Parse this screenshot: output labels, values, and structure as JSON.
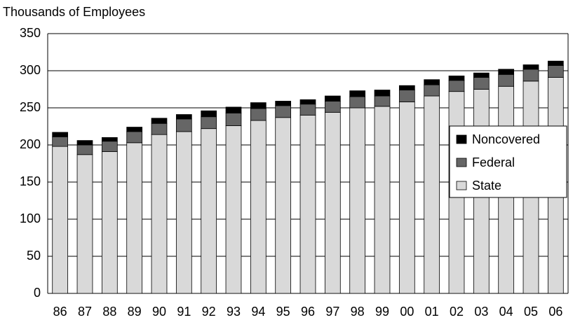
{
  "chart_data": {
    "type": "stacked_bar",
    "y_label": "Thousands of Employees",
    "categories": [
      "86",
      "87",
      "88",
      "89",
      "90",
      "91",
      "92",
      "93",
      "94",
      "95",
      "96",
      "97",
      "98",
      "99",
      "00",
      "01",
      "02",
      "03",
      "04",
      "05",
      "06"
    ],
    "series": [
      {
        "name": "State",
        "color": "#d9d9d9",
        "values": [
          198,
          187,
          191,
          203,
          214,
          218,
          222,
          226,
          233,
          237,
          240,
          244,
          250,
          252,
          258,
          266,
          272,
          275,
          279,
          286,
          291
        ]
      },
      {
        "name": "Federal",
        "color": "#666666",
        "values": [
          13,
          13,
          14,
          15,
          15,
          17,
          16,
          17,
          16,
          16,
          15,
          15,
          15,
          14,
          16,
          15,
          15,
          16,
          16,
          16,
          16
        ]
      },
      {
        "name": "Noncovered",
        "color": "#000000",
        "values": [
          6,
          6,
          5,
          6,
          7,
          6,
          8,
          8,
          8,
          6,
          6,
          7,
          8,
          8,
          6,
          7,
          6,
          6,
          7,
          6,
          6
        ]
      }
    ],
    "ylim": [
      0,
      350
    ],
    "yticks": [
      0,
      50,
      100,
      150,
      200,
      250,
      300,
      350
    ],
    "grid": true,
    "legend": "right"
  }
}
